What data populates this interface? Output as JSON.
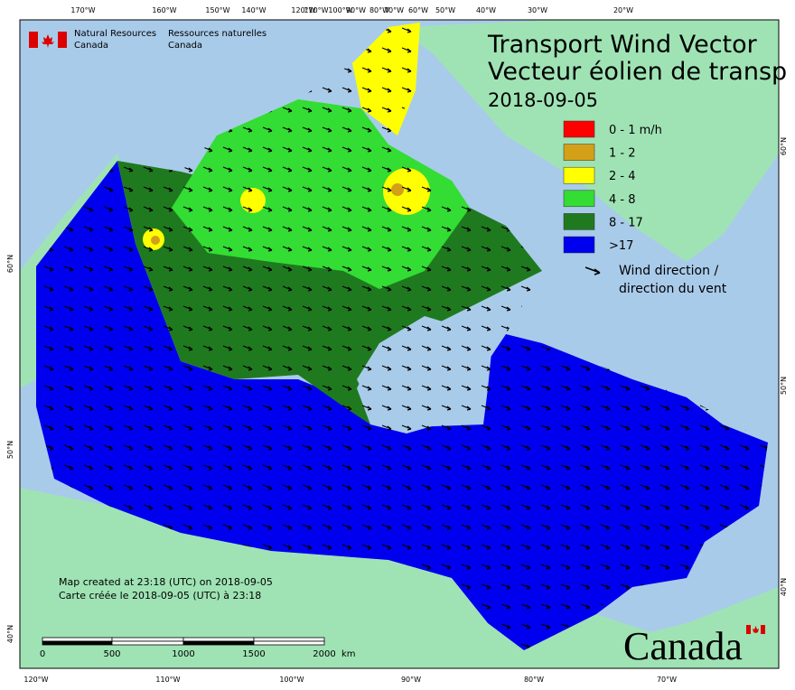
{
  "header": {
    "agency_en": "Natural Resources",
    "country_en": "Canada",
    "agency_fr": "Ressources naturelles",
    "country_fr": "Canada"
  },
  "title": {
    "line1": "Transport Wind Vector",
    "line2": "Vecteur éolien de transp",
    "date": "2018-09-05"
  },
  "legend": {
    "items": [
      {
        "label": "0 - 1 m/h",
        "color": "#ff0000"
      },
      {
        "label": "1 - 2",
        "color": "#d4a017"
      },
      {
        "label": "2 - 4",
        "color": "#ffff00"
      },
      {
        "label": "4 - 8",
        "color": "#33dd33"
      },
      {
        "label": "8 - 17",
        "color": "#1f7a1f"
      },
      {
        "label": ">17",
        "color": "#0000ee"
      }
    ],
    "arrow_line1": "Wind direction /",
    "arrow_line2": "direction du vent"
  },
  "graticule": {
    "top": [
      "170°W",
      "160°W",
      "150°W",
      "140°W",
      "120°W",
      "110°W",
      "100°W",
      "90°W",
      "80°W",
      "70°W",
      "60°W",
      "50°W",
      "40°W",
      "30°W",
      "20°W"
    ],
    "bottom": [
      "120°W",
      "110°W",
      "100°W",
      "90°W",
      "80°W",
      "70°W"
    ],
    "left": [
      "60°N",
      "50°N",
      "40°N"
    ],
    "right": [
      "60°N",
      "50°N",
      "40°N"
    ]
  },
  "credits": {
    "line1": "Map created at 23:18 (UTC) on 2018-09-05",
    "line2": "Carte créée le 2018-09-05 (UTC) à 23:18"
  },
  "scale_bar": {
    "labels": [
      "0",
      "500",
      "1000",
      "1500",
      "2000"
    ],
    "unit": "km"
  },
  "wordmark": "Canada"
}
